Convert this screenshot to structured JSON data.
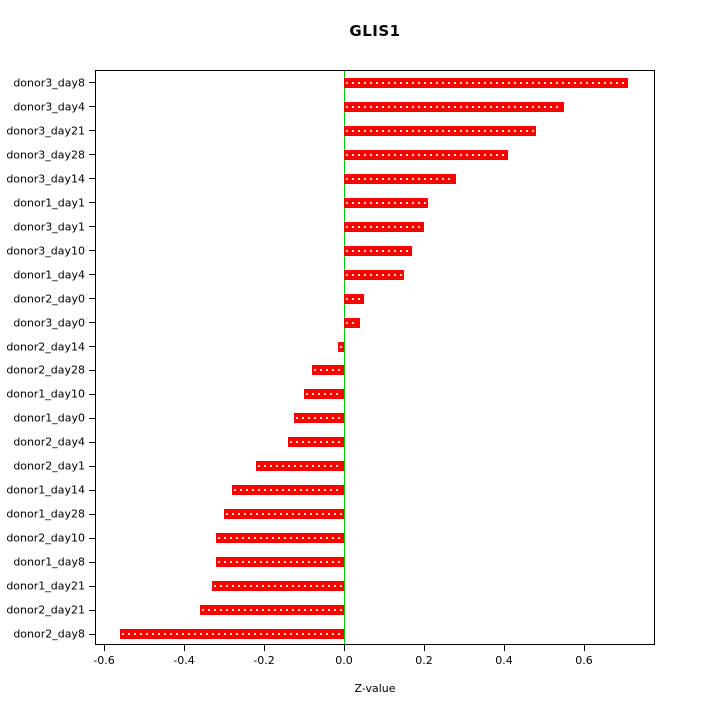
{
  "figure": {
    "title": "GLIS1",
    "xlabel": "Z-value"
  },
  "chart_data": {
    "type": "bar",
    "orientation": "horizontal",
    "title": "GLIS1",
    "xlabel": "Z-value",
    "ylabel": "",
    "grid": false,
    "bar_color": "#ff0000",
    "zero_line_color": "#00cc00",
    "xlim": [
      -0.62,
      0.78
    ],
    "xticks": [
      -0.6,
      -0.4,
      -0.2,
      0.0,
      0.2,
      0.4,
      0.6
    ],
    "xtick_labels": [
      "-0.6",
      "-0.4",
      "-0.2",
      "0.0",
      "0.2",
      "0.4",
      "0.6"
    ],
    "categories": [
      "donor3_day8",
      "donor3_day4",
      "donor3_day21",
      "donor3_day28",
      "donor3_day14",
      "donor1_day1",
      "donor3_day1",
      "donor3_day10",
      "donor1_day4",
      "donor2_day0",
      "donor3_day0",
      "donor2_day14",
      "donor2_day28",
      "donor1_day10",
      "donor1_day0",
      "donor2_day4",
      "donor2_day1",
      "donor1_day14",
      "donor1_day28",
      "donor2_day10",
      "donor1_day8",
      "donor1_day21",
      "donor2_day21",
      "donor2_day8"
    ],
    "values": [
      0.71,
      0.55,
      0.48,
      0.41,
      0.28,
      0.21,
      0.2,
      0.17,
      0.15,
      0.05,
      0.04,
      -0.015,
      -0.08,
      -0.1,
      -0.125,
      -0.14,
      -0.22,
      -0.28,
      -0.3,
      -0.32,
      -0.32,
      -0.33,
      -0.36,
      -0.56
    ]
  }
}
